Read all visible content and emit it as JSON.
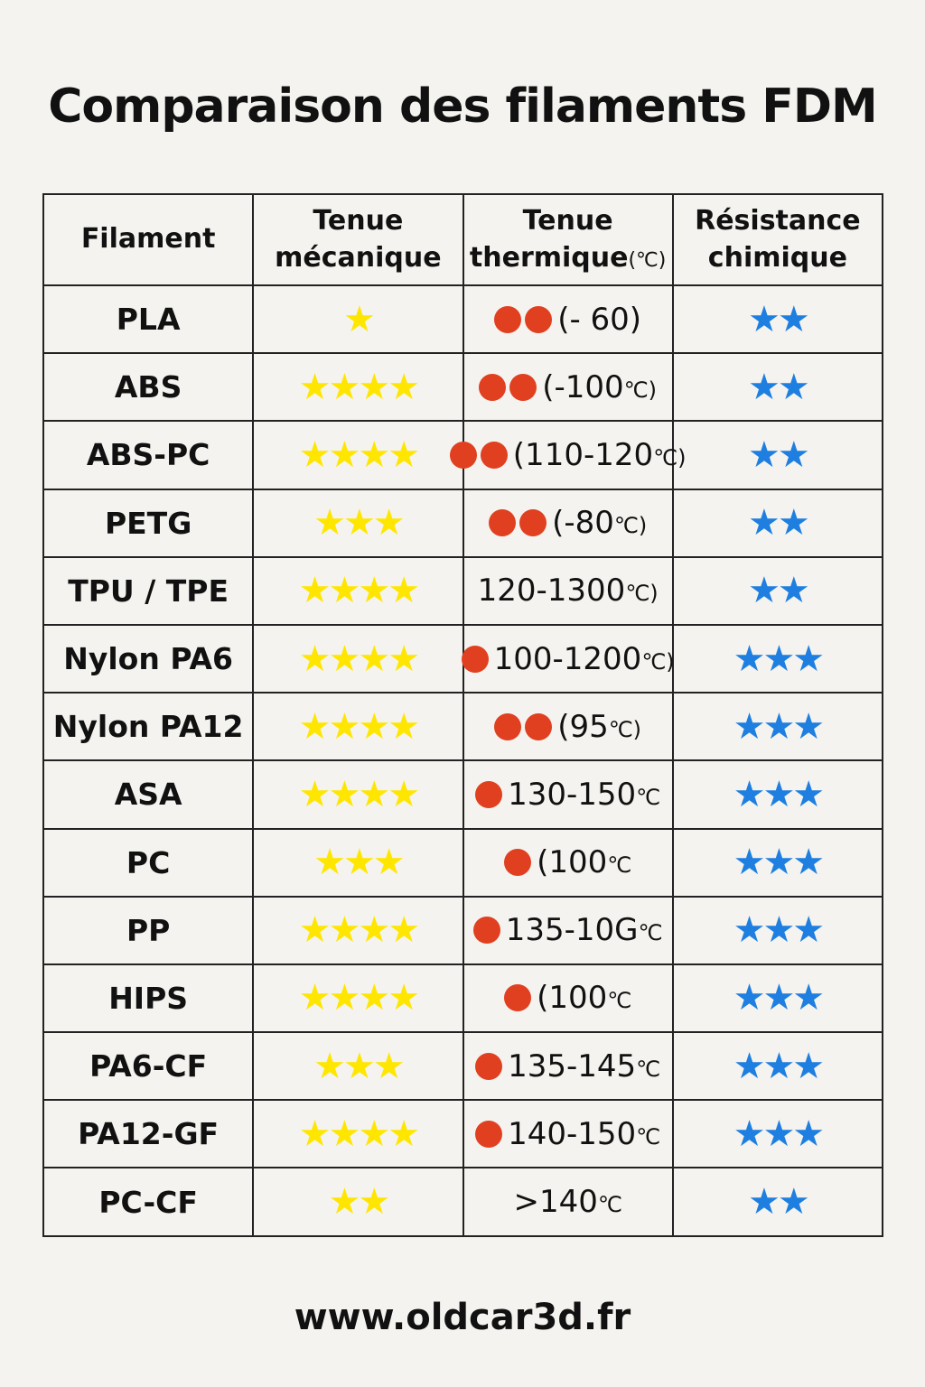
{
  "title": "Comparaison des filaments FDM",
  "footer": "www.oldcar3d.fr",
  "colors": {
    "mechanical_star": "#FFE600",
    "chemical_star": "#1E7FE0",
    "thermal_dot": "#E04020",
    "background": "#F4F3EF"
  },
  "icons": {
    "mechanical": "star-icon",
    "chemical": "star-icon",
    "thermal": "circle-icon"
  },
  "headers": {
    "filament": "Filament",
    "mechanical_1": "Tenue",
    "mechanical_2": "mécanique",
    "thermal_1": "Tenue",
    "thermal_2": "thermique",
    "thermal_unit": "(℃)",
    "chemical_1": "Résistance",
    "chemical_2": "chimique"
  },
  "rows": [
    {
      "name": "PLA",
      "mechanical": 1,
      "thermal_dots": 2,
      "temp": "(- 60)",
      "unit": "",
      "chemical": 2
    },
    {
      "name": "ABS",
      "mechanical": 4,
      "thermal_dots": 2,
      "temp": "(-100",
      "unit": "℃)",
      "chemical": 2
    },
    {
      "name": "ABS-PC",
      "mechanical": 4,
      "thermal_dots": 2,
      "temp": "(110-120",
      "unit": "℃)",
      "chemical": 2
    },
    {
      "name": "PETG",
      "mechanical": 3,
      "thermal_dots": 2,
      "temp": "(-80",
      "unit": "℃)",
      "chemical": 2
    },
    {
      "name": "TPU / TPE",
      "mechanical": 4,
      "thermal_dots": 0,
      "temp": "120-1300",
      "unit": "℃)",
      "chemical": 2
    },
    {
      "name": "Nylon PA6",
      "mechanical": 4,
      "thermal_dots": 1,
      "temp": "100-1200",
      "unit": "℃)",
      "chemical": 3
    },
    {
      "name": "Nylon PA12",
      "mechanical": 4,
      "thermal_dots": 2,
      "temp": "(95",
      "unit": "℃)",
      "chemical": 3
    },
    {
      "name": "ASA",
      "mechanical": 4,
      "thermal_dots": 1,
      "temp": "130-150",
      "unit": "℃",
      "chemical": 3
    },
    {
      "name": "PC",
      "mechanical": 3,
      "thermal_dots": 1,
      "temp": "(100",
      "unit": "℃",
      "chemical": 3
    },
    {
      "name": "PP",
      "mechanical": 4,
      "thermal_dots": 1,
      "temp": "135-10G",
      "unit": "℃",
      "chemical": 3
    },
    {
      "name": "HIPS",
      "mechanical": 4,
      "thermal_dots": 1,
      "temp": "(100",
      "unit": "℃",
      "chemical": 3
    },
    {
      "name": "PA6-CF",
      "mechanical": 3,
      "thermal_dots": 1,
      "temp": "135-145",
      "unit": "℃",
      "chemical": 3
    },
    {
      "name": "PA12-GF",
      "mechanical": 4,
      "thermal_dots": 1,
      "temp": "140-150",
      "unit": "℃",
      "chemical": 3
    },
    {
      "name": "PC-CF",
      "mechanical": 2,
      "thermal_dots": 0,
      "temp": ">140",
      "unit": "℃",
      "chemical": 2
    }
  ]
}
